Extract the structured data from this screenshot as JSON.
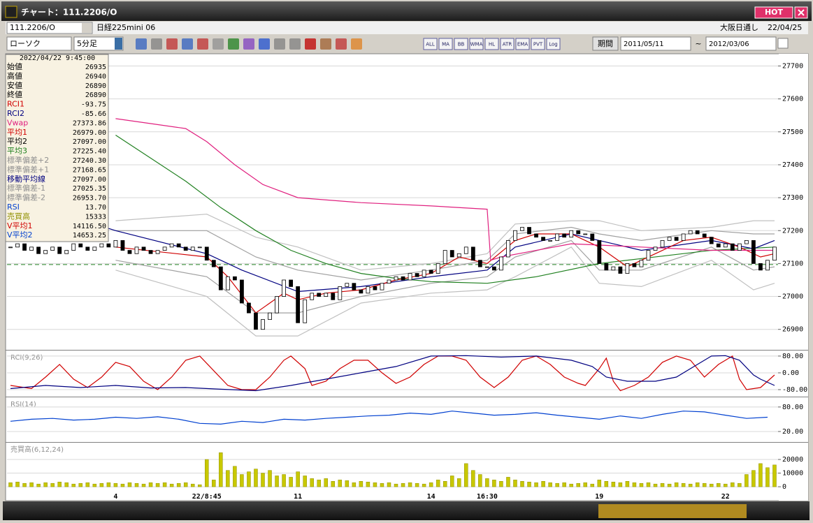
{
  "window": {
    "title": "チャート：111.2206/O",
    "hot": "HOT"
  },
  "toolbar": {
    "symbol": "111.2206/O",
    "name": "日経225mini 06",
    "market": "大阪日通し",
    "date": "22/04/25",
    "chart_type": "ローソク",
    "interval": "5分足",
    "period_label": "期間",
    "from": "2011/05/11",
    "tilde": "~",
    "to": "2012/03/06",
    "icon_texts": [
      "ALL",
      "MA",
      "BB",
      "WMA",
      "HL",
      "ATR",
      "EMA",
      "PVT",
      "Log"
    ]
  },
  "info_panel": {
    "timestamp": "2022/04/22 9:45:00",
    "rows": [
      {
        "label": "始値",
        "value": "26935",
        "color": "#000000"
      },
      {
        "label": "高値",
        "value": "26940",
        "color": "#000000"
      },
      {
        "label": "安値",
        "value": "26890",
        "color": "#000000"
      },
      {
        "label": "終値",
        "value": "26890",
        "color": "#000000"
      },
      {
        "label": "RCI1",
        "value": "-93.75",
        "color": "#d00000"
      },
      {
        "label": "RCI2",
        "value": "-85.66",
        "color": "#000080"
      },
      {
        "label": "Vwap",
        "value": "27373.86",
        "color": "#e0207f"
      },
      {
        "label": "平均1",
        "value": "26979.00",
        "color": "#d00000"
      },
      {
        "label": "平均2",
        "value": "27097.00",
        "color": "#000000"
      },
      {
        "label": "平均3",
        "value": "27225.40",
        "color": "#208020"
      },
      {
        "label": "標準偏差+2",
        "value": "27240.30",
        "color": "#909090"
      },
      {
        "label": "標準偏差+1",
        "value": "27168.65",
        "color": "#909090"
      },
      {
        "label": "移動平均線",
        "value": "27097.00",
        "color": "#000080"
      },
      {
        "label": "標準偏差-1",
        "value": "27025.35",
        "color": "#909090"
      },
      {
        "label": "標準偏差-2",
        "value": "26953.70",
        "color": "#909090"
      },
      {
        "label": "RSI",
        "value": "13.70",
        "color": "#0040d0"
      },
      {
        "label": "売買高",
        "value": "15333",
        "color": "#909000"
      },
      {
        "label": "V平均1",
        "value": "14116.50",
        "color": "#d00000"
      },
      {
        "label": "V平均2",
        "value": "14653.25",
        "color": "#0040d0"
      }
    ]
  },
  "chart_data": [
    {
      "type": "candlestick",
      "grid": true,
      "ylim": [
        26840,
        27735
      ],
      "yticks": [
        27700,
        27600,
        27500,
        27400,
        27300,
        27200,
        27100,
        27000,
        26900
      ],
      "up_color": "#ffffff",
      "down_color": "#000000",
      "values": [
        27150,
        27160,
        27140,
        27150,
        27130,
        27140,
        27150,
        27130,
        27140,
        27160,
        27150,
        27140,
        27150,
        27160,
        27150,
        27170,
        27140,
        27130,
        27150,
        27140,
        27130,
        27140,
        27150,
        27160,
        27150,
        27140,
        27150,
        27150,
        27110,
        27090,
        27020,
        27060,
        27050,
        26980,
        26950,
        26900,
        26930,
        26950,
        27000,
        27050,
        27030,
        26920,
        26990,
        27010,
        27000,
        27010,
        26990,
        27030,
        27040,
        27020,
        27010,
        27030,
        27020,
        27040,
        27050,
        27060,
        27050,
        27070,
        27060,
        27080,
        27070,
        27100,
        27140,
        27120,
        27130,
        27150,
        27110,
        27090,
        27090,
        27080,
        27120,
        27170,
        27200,
        27210,
        27190,
        27180,
        27170,
        27170,
        27190,
        27180,
        27200,
        27190,
        27190,
        27170,
        27100,
        27080,
        27090,
        27070,
        27100,
        27090,
        27110,
        27140,
        27150,
        27170,
        27180,
        27170,
        27190,
        27200,
        27190,
        27180,
        27160,
        27150,
        27160,
        27140,
        27160,
        27170,
        27100,
        27080,
        27110,
        27150
      ],
      "reference_line": {
        "value": 27097,
        "color": "#208020"
      },
      "series": [
        {
          "color": "#c0c0c0",
          "x": [
            15,
            28,
            35,
            41,
            50,
            60,
            68,
            72,
            80,
            84,
            90,
            100,
            106,
            109
          ],
          "values": [
            27230,
            27250,
            27180,
            27150,
            27080,
            27100,
            27130,
            27220,
            27230,
            27230,
            27200,
            27210,
            27230,
            27230
          ]
        },
        {
          "color": "#a0a0a0",
          "x": [
            15,
            28,
            35,
            41,
            50,
            60,
            68,
            72,
            80,
            84,
            90,
            100,
            106,
            109
          ],
          "values": [
            27200,
            27200,
            27120,
            27080,
            27050,
            27080,
            27110,
            27190,
            27210,
            27190,
            27170,
            27200,
            27190,
            27190
          ]
        },
        {
          "color": "#a0a0a0",
          "x": [
            15,
            28,
            35,
            41,
            50,
            60,
            68,
            72,
            80,
            84,
            90,
            100,
            106,
            109
          ],
          "values": [
            27110,
            27060,
            26950,
            26950,
            27000,
            27040,
            27060,
            27120,
            27170,
            27080,
            27080,
            27150,
            27080,
            27090
          ]
        },
        {
          "color": "#c0c0c0",
          "x": [
            15,
            28,
            35,
            41,
            50,
            60,
            68,
            72,
            80,
            84,
            90,
            100,
            106,
            109
          ],
          "values": [
            27080,
            27000,
            26880,
            26880,
            26980,
            27010,
            27020,
            27060,
            27150,
            27040,
            27030,
            27110,
            27020,
            27040
          ]
        },
        {
          "color": "#208020",
          "x": [
            15,
            20,
            25,
            30,
            35,
            40,
            45,
            50,
            55,
            60,
            68,
            75,
            84,
            90,
            100,
            109
          ],
          "values": [
            27490,
            27420,
            27350,
            27270,
            27200,
            27140,
            27100,
            27070,
            27055,
            27045,
            27040,
            27060,
            27100,
            27115,
            27140,
            27150
          ]
        },
        {
          "color": "#000080",
          "x": [
            0,
            15,
            28,
            33,
            41,
            50,
            60,
            68,
            72,
            80,
            84,
            90,
            100,
            106,
            109
          ],
          "values": [
            27300,
            27200,
            27130,
            27080,
            27015,
            27030,
            27060,
            27080,
            27150,
            27190,
            27170,
            27140,
            27170,
            27145,
            27170
          ]
        },
        {
          "color": "#d00000",
          "x": [
            15,
            28,
            31,
            35,
            39,
            41,
            45,
            50,
            55,
            60,
            64,
            68,
            72,
            75,
            80,
            84,
            88,
            92,
            96,
            100,
            104,
            107,
            109
          ],
          "values": [
            27150,
            27120,
            27060,
            26950,
            27010,
            26990,
            27010,
            27020,
            27050,
            27070,
            27120,
            27100,
            27170,
            27190,
            27190,
            27150,
            27090,
            27130,
            27170,
            27180,
            27150,
            27120,
            27130
          ]
        },
        {
          "color": "#e0207f",
          "x": [
            15,
            20,
            25,
            28,
            32,
            36,
            41,
            50,
            60,
            68,
            68.5,
            70,
            80,
            90,
            100,
            109
          ],
          "values": [
            27540,
            27525,
            27510,
            27470,
            27400,
            27340,
            27300,
            27285,
            27275,
            27265,
            27110,
            27120,
            27160,
            27150,
            27140,
            27140
          ]
        }
      ]
    },
    {
      "type": "line",
      "label": "RCI(9,26)",
      "grid": true,
      "ylim": [
        -110,
        103
      ],
      "yticks": [
        {
          "value": 80,
          "label": "80.00"
        },
        {
          "value": 0,
          "label": "0.00"
        },
        {
          "value": -80,
          "label": "-80.00"
        }
      ],
      "series": [
        {
          "color": "#d00000",
          "x": [
            0,
            3,
            5,
            7,
            9,
            11,
            13,
            15,
            17,
            19,
            21,
            23,
            25,
            27,
            29,
            31,
            33,
            35,
            37,
            39,
            40,
            42,
            43,
            45,
            47,
            49,
            51,
            53,
            55,
            57,
            59,
            61,
            63,
            65,
            67,
            69,
            71,
            73,
            75,
            77,
            79,
            81,
            82,
            84,
            85,
            86,
            87,
            89,
            91,
            93,
            95,
            97,
            99,
            101,
            103,
            104,
            105,
            107,
            109
          ],
          "values": [
            -60,
            -75,
            -20,
            40,
            -30,
            -70,
            -20,
            50,
            30,
            -40,
            -80,
            -20,
            60,
            80,
            10,
            -60,
            -80,
            -80,
            -20,
            60,
            80,
            20,
            -60,
            -40,
            20,
            60,
            60,
            0,
            -50,
            -20,
            40,
            80,
            80,
            60,
            -20,
            -70,
            -20,
            60,
            80,
            40,
            -20,
            -50,
            -60,
            20,
            70,
            -40,
            -85,
            -60,
            -20,
            50,
            80,
            60,
            -20,
            40,
            80,
            -30,
            -80,
            -70,
            -10
          ]
        },
        {
          "color": "#000080",
          "x": [
            0,
            5,
            10,
            15,
            20,
            25,
            30,
            35,
            40,
            45,
            50,
            55,
            60,
            65,
            70,
            75,
            80,
            83,
            85,
            88,
            92,
            95,
            98,
            100,
            102,
            104,
            106,
            107,
            109
          ],
          "values": [
            -75,
            -60,
            -70,
            -60,
            -72,
            -70,
            -78,
            -85,
            -60,
            -30,
            0,
            30,
            80,
            82,
            75,
            80,
            60,
            30,
            -20,
            -40,
            -40,
            -20,
            40,
            80,
            82,
            60,
            -10,
            -30,
            -60
          ]
        }
      ]
    },
    {
      "type": "line",
      "label": "RSI(14)",
      "grid": true,
      "ylim": [
        -4,
        102
      ],
      "yticks": [
        {
          "value": 80,
          "label": "80.00"
        },
        {
          "value": 20,
          "label": "20.00"
        }
      ],
      "series": [
        {
          "color": "#0040d0",
          "x": [
            0,
            3,
            6,
            9,
            12,
            15,
            18,
            21,
            24,
            27,
            30,
            33,
            36,
            39,
            42,
            45,
            48,
            51,
            54,
            57,
            60,
            63,
            66,
            69,
            72,
            75,
            78,
            81,
            84,
            87,
            90,
            93,
            96,
            99,
            102,
            105,
            108
          ],
          "values": [
            45,
            50,
            52,
            48,
            50,
            55,
            52,
            56,
            50,
            40,
            38,
            45,
            42,
            50,
            48,
            52,
            55,
            58,
            60,
            65,
            62,
            70,
            65,
            60,
            62,
            66,
            60,
            55,
            50,
            58,
            52,
            62,
            70,
            68,
            60,
            52,
            55
          ]
        }
      ]
    },
    {
      "type": "bar",
      "label": "売買高(6,12,24)",
      "grid": true,
      "ylim": [
        -1500,
        31800
      ],
      "yticks": [
        20000,
        10000,
        0
      ],
      "color": "#c8c800",
      "categories": [
        null,
        null,
        null,
        null,
        null,
        null,
        null,
        null,
        null,
        null,
        null,
        null,
        null,
        null,
        null,
        "4",
        null,
        null,
        null,
        null,
        null,
        null,
        null,
        null,
        null,
        null,
        null,
        null,
        "22/8:45",
        null,
        null,
        null,
        null,
        null,
        null,
        null,
        null,
        null,
        null,
        null,
        null,
        "11",
        null,
        null,
        null,
        null,
        null,
        null,
        null,
        null,
        null,
        null,
        null,
        null,
        null,
        null,
        null,
        null,
        null,
        null,
        "14",
        null,
        null,
        null,
        null,
        null,
        null,
        null,
        "16:30",
        null,
        null,
        null,
        null,
        null,
        null,
        null,
        null,
        null,
        null,
        null,
        null,
        null,
        null,
        null,
        "19",
        null,
        null,
        null,
        null,
        null,
        null,
        null,
        null,
        null,
        null,
        null,
        null,
        null,
        null,
        null,
        null,
        null,
        "22",
        null,
        null,
        null,
        null,
        null,
        null,
        null
      ],
      "values": [
        3000,
        3500,
        2500,
        3000,
        2000,
        3000,
        2500,
        3500,
        3000,
        2000,
        2500,
        3000,
        2000,
        2500,
        3000,
        2500,
        2000,
        3000,
        2500,
        2000,
        3000,
        2500,
        3000,
        2000,
        2500,
        3000,
        2000,
        1500,
        20000,
        5000,
        25000,
        12000,
        15000,
        9000,
        11000,
        13000,
        10000,
        12000,
        8000,
        9000,
        7000,
        11000,
        8000,
        6000,
        5000,
        6000,
        4000,
        5000,
        4500,
        3000,
        4000,
        3500,
        3000,
        2500,
        3000,
        2000,
        2500,
        3000,
        2500,
        2000,
        3000,
        5000,
        4000,
        8000,
        6000,
        17000,
        12000,
        9000,
        6000,
        5000,
        4000,
        7000,
        5000,
        4000,
        3500,
        3000,
        4000,
        3000,
        2500,
        3000,
        2000,
        2500,
        3000,
        2000,
        5000,
        4000,
        3500,
        3000,
        4000,
        3000,
        2500,
        3000,
        2000,
        2500,
        2000,
        3000,
        2500,
        2000,
        3000,
        2500,
        2000,
        2500,
        2000,
        3000,
        2500,
        9000,
        12000,
        17000,
        14000,
        16000
      ]
    }
  ]
}
